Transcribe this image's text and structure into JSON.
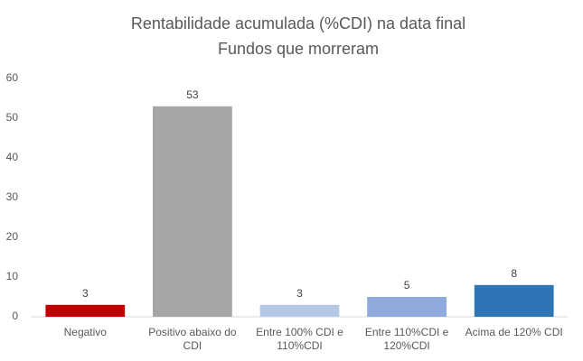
{
  "chart_data": {
    "type": "bar",
    "title": "Rentabilidade acumulada (%CDI) na data final",
    "subtitle": "Fundos que morreram",
    "categories": [
      "Negativo",
      "Positivo abaixo do CDI",
      "Entre 100% CDI e 110%CDI",
      "Entre 110%CDI e 120%CDI",
      "Acima de 120% CDI"
    ],
    "values": [
      3,
      53,
      3,
      5,
      8
    ],
    "colors": [
      "#c00000",
      "#a6a6a6",
      "#b4c7e7",
      "#8faadc",
      "#2e75b6"
    ],
    "ylim": [
      0,
      60
    ],
    "yticks": [
      0,
      10,
      20,
      30,
      40,
      50,
      60
    ],
    "grid": false,
    "data_labels": true
  }
}
